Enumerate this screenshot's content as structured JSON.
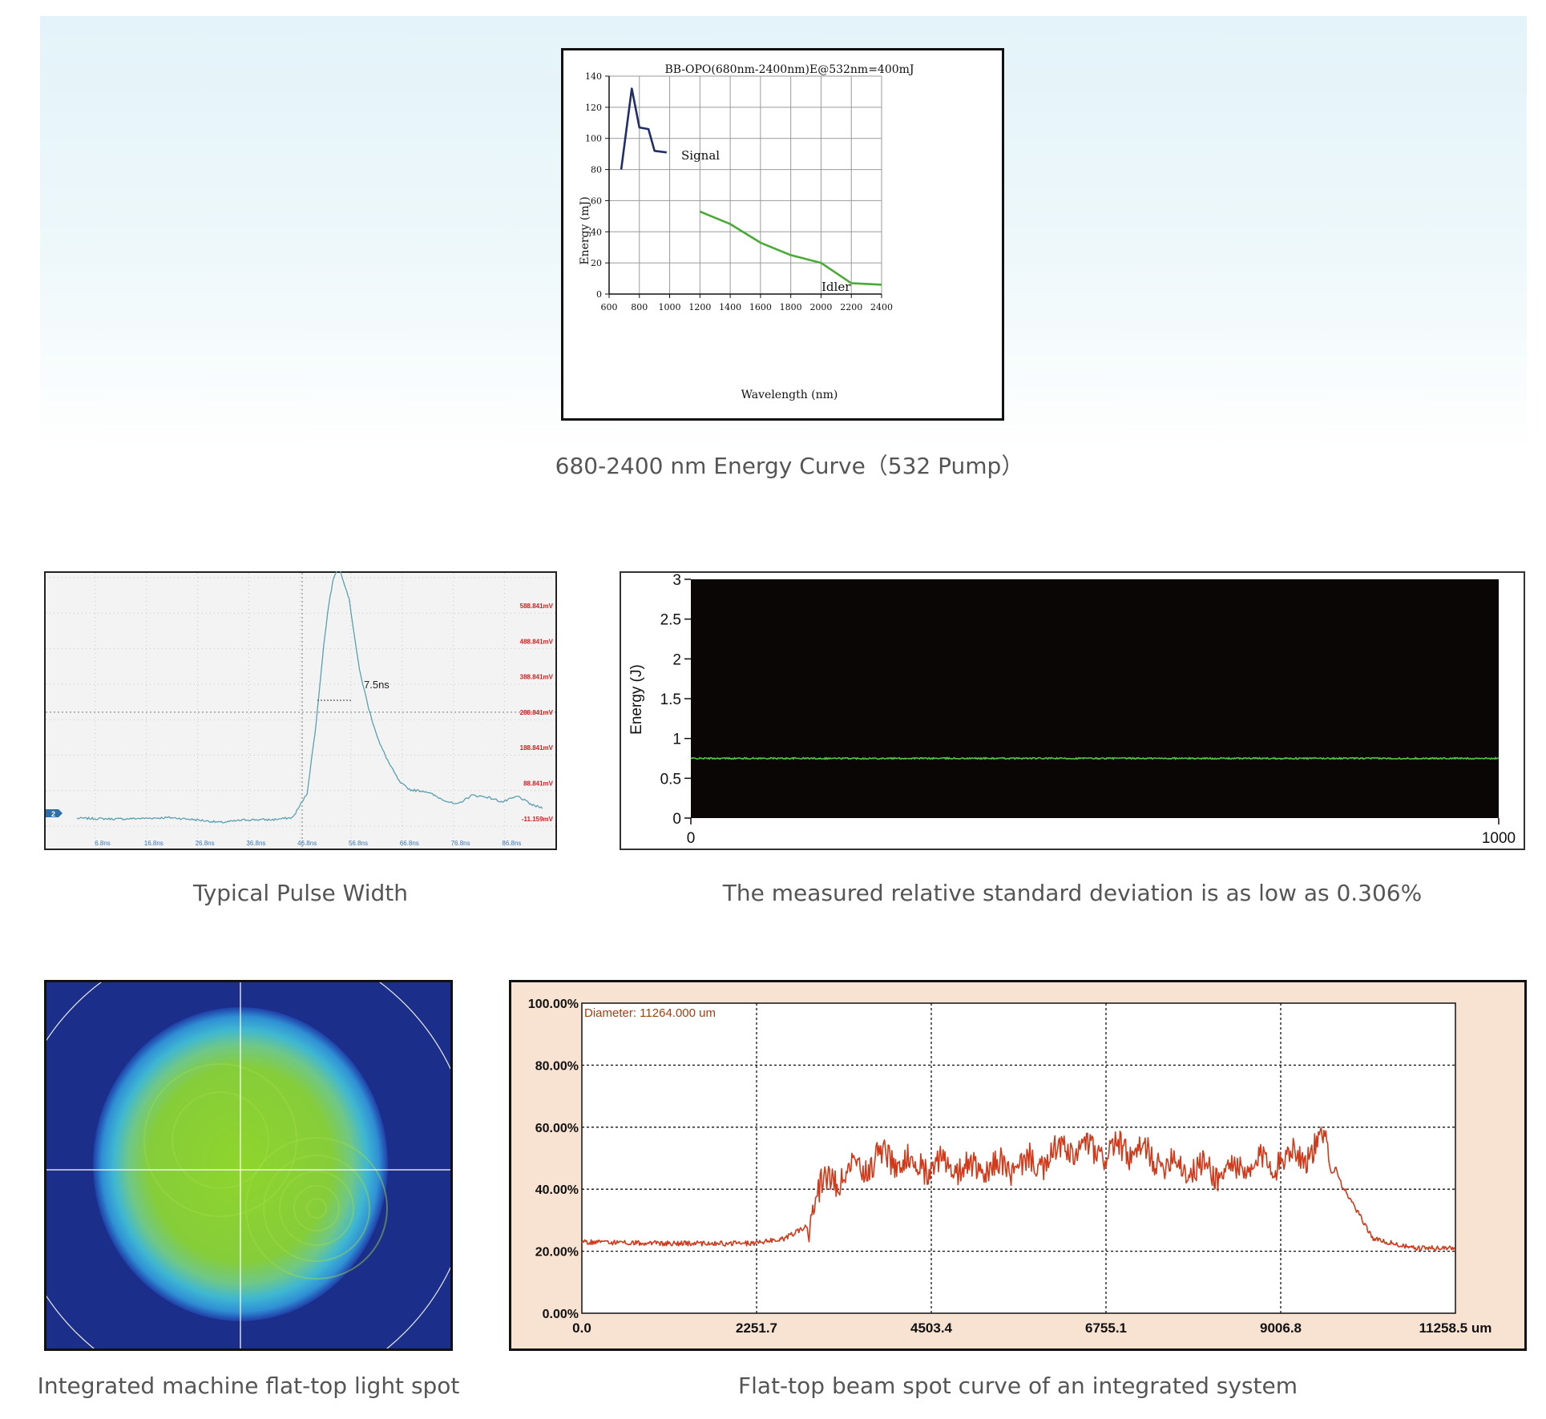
{
  "captions": {
    "energy_curve": "680-2400 nm Energy Curve（532 Pump）",
    "pulse_width": "Typical Pulse Width",
    "stability": "The measured relative standard deviation is as low as 0.306%",
    "spot_image": "Integrated machine flat-top light spot",
    "spot_curve": "Flat-top beam spot curve of an integrated system"
  },
  "colors": {
    "signal": "#1f2d6b",
    "idler": "#4aaa36",
    "scope_trace": "#5aa0ae",
    "scope_mv": "#d62020",
    "scope_time": "#3a78b8",
    "stability_trace": "#57c24a",
    "beam_trace": "#d03a1a",
    "beam_bg": "#f8e3d3"
  },
  "chart_data": [
    {
      "id": "energy",
      "type": "line",
      "title": "BB-OPO(680nm-2400nm)E@532nm=400mJ",
      "xlabel": "Wavelength (nm)",
      "ylabel": "Energy (mJ)",
      "xlim": [
        600,
        2400
      ],
      "ylim": [
        0,
        140
      ],
      "xticks": [
        "600",
        "800",
        "1000",
        "1200",
        "1400",
        "1600",
        "1800",
        "2000",
        "2200",
        "2400"
      ],
      "yticks": [
        "0",
        "20",
        "40",
        "60",
        "80",
        "100",
        "120",
        "140"
      ],
      "grid": true,
      "series": [
        {
          "name": "Signal",
          "x": [
            680,
            750,
            800,
            860,
            900,
            980
          ],
          "y": [
            80,
            132,
            107,
            106,
            92,
            91
          ]
        },
        {
          "name": "Idler",
          "x": [
            1200,
            1400,
            1600,
            1800,
            2000,
            2200,
            2400
          ],
          "y": [
            53,
            45,
            33,
            25,
            20,
            7,
            6
          ]
        }
      ]
    },
    {
      "id": "pulse",
      "type": "line",
      "annotation": "7.5ns",
      "channel_label": "2",
      "right_labels": [
        "588.841mV",
        "488.841mV",
        "388.841mV",
        "288.841mV",
        "188.841mV",
        "88.841mV",
        "-11.159mV"
      ],
      "bottom_labels": [
        "6.8ns",
        "16.8ns",
        "26.8ns",
        "36.8ns",
        "46.8ns",
        "56.8ns",
        "66.8ns",
        "76.8ns",
        "86.8ns"
      ],
      "ylim": [
        -11.159,
        688.841
      ],
      "series": [
        {
          "x": [
            1.8,
            10,
            20,
            25,
            30,
            35,
            40,
            44,
            46.8,
            48.5,
            50,
            51,
            52,
            53,
            55,
            57,
            59,
            61,
            63,
            65,
            67,
            70,
            73,
            76,
            79,
            82,
            85,
            88,
            91,
            92.8
          ],
          "y": [
            -10,
            -12,
            -8,
            -14,
            -22,
            -14,
            -14,
            -8,
            60,
            250,
            470,
            590,
            670,
            700,
            610,
            410,
            290,
            200,
            140,
            90,
            70,
            66,
            45,
            28,
            55,
            50,
            36,
            52,
            26,
            20
          ]
        }
      ]
    },
    {
      "id": "stability",
      "type": "line",
      "ylabel": "Energy (J)",
      "xlim": [
        0,
        1000
      ],
      "ylim": [
        0,
        3
      ],
      "yticks": [
        "0",
        "0.5",
        "1",
        "1.5",
        "2",
        "2.5",
        "3"
      ],
      "xticks": [
        "0",
        "1000"
      ],
      "series": [
        {
          "mean": 0.75
        }
      ]
    },
    {
      "id": "beam",
      "type": "line",
      "annotation": "Diameter: 11264.000 um",
      "xlim": [
        0,
        11258.5
      ],
      "ylim": [
        0,
        100
      ],
      "xticks": [
        "0.0",
        "2251.7",
        "4503.4",
        "6755.1",
        "9006.8",
        "11258.5 um"
      ],
      "yticks": [
        "0.00%",
        "20.00%",
        "40.00%",
        "60.00%",
        "80.00%",
        "100.00%"
      ],
      "grid": true,
      "series": [
        {
          "x": [
            0,
            1000,
            2200,
            2600,
            2900,
            3100,
            3500,
            4000,
            4500,
            5000,
            5500,
            6000,
            6200,
            6755,
            7000,
            7500,
            8000,
            8500,
            9000,
            9500,
            9600,
            9800,
            10200,
            10700,
            11258
          ],
          "y": [
            23,
            22.5,
            22.5,
            24,
            28,
            41,
            48,
            50,
            48,
            46,
            47,
            49,
            53,
            52,
            53,
            49,
            46,
            46,
            50,
            53,
            55,
            41,
            24,
            21,
            21
          ]
        }
      ]
    }
  ]
}
